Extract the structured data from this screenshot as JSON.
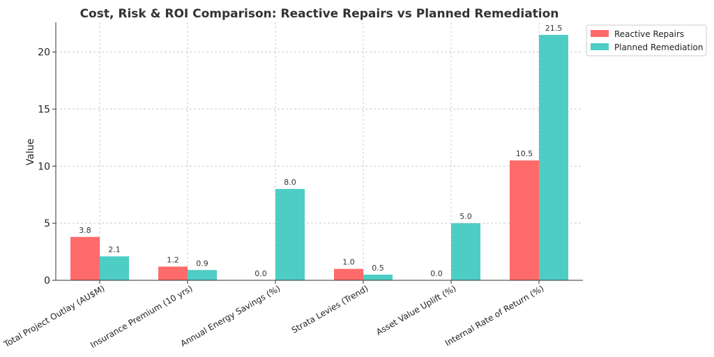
{
  "chart_data": {
    "type": "bar",
    "title": "Cost, Risk & ROI Comparison: Reactive Repairs vs Planned Remediation",
    "xlabel": "",
    "ylabel": "Value",
    "ylim": [
      0,
      22.6
    ],
    "yticks": [
      0,
      5,
      10,
      15,
      20
    ],
    "grid": true,
    "legend_position": "top-right",
    "categories": [
      "Total Project Outlay (AU$M)",
      "Insurance Premium (10 yrs)",
      "Annual Energy Savings (%)",
      "Strata Levies (Trend)",
      "Asset Value Uplift (%)",
      "Internal Rate of Return (%)"
    ],
    "series": [
      {
        "name": "Reactive Repairs",
        "color": "#ff6b6b",
        "values": [
          3.8,
          1.2,
          0.0,
          1.0,
          0.0,
          10.5
        ]
      },
      {
        "name": "Planned Remediation",
        "color": "#4ecdc4",
        "values": [
          2.1,
          0.9,
          8.0,
          0.5,
          5.0,
          21.5
        ]
      }
    ]
  }
}
